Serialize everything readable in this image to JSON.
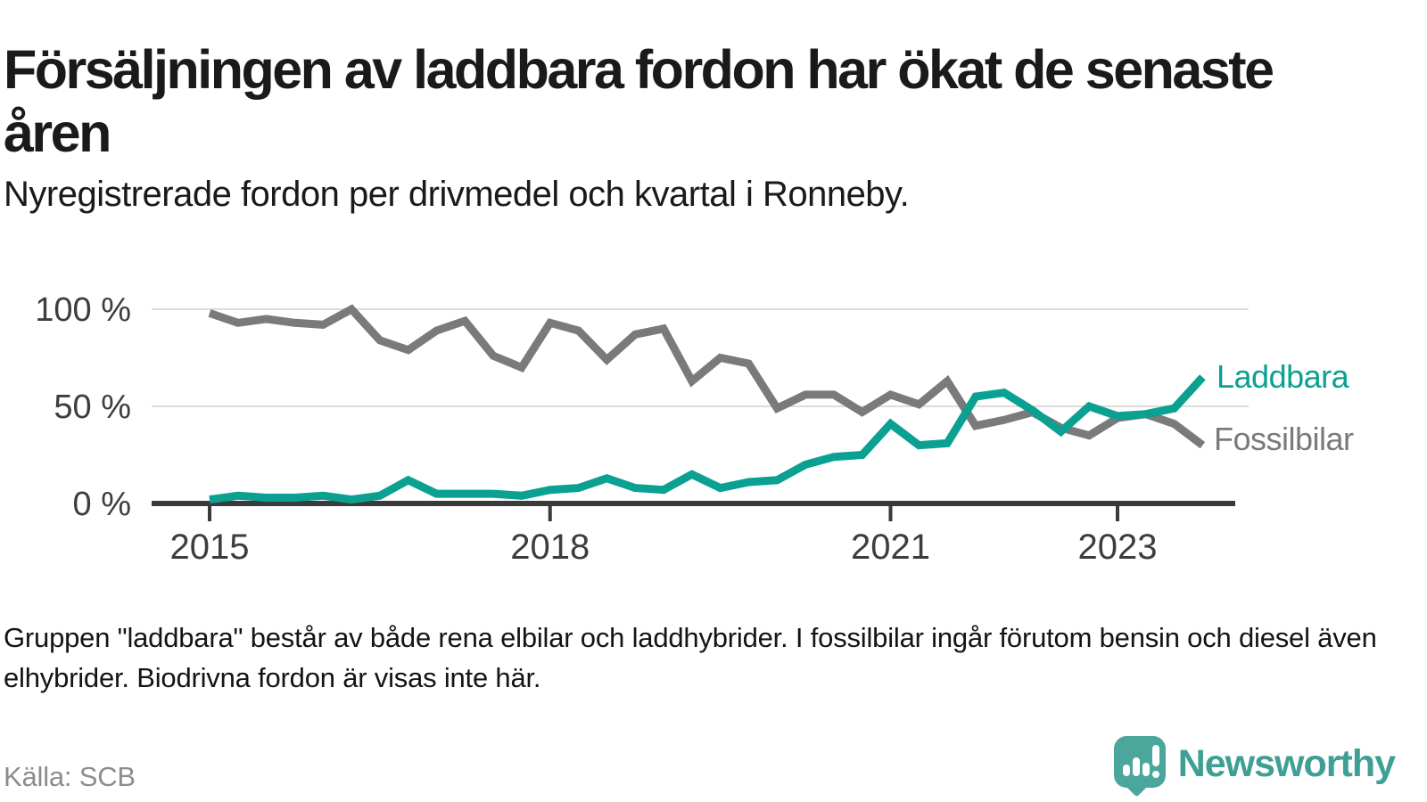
{
  "header": {
    "title": "Försäljningen av laddbara fordon har ökat de senaste åren",
    "subtitle": "Nyregistrerade fordon per drivmedel och kvartal i Ronneby."
  },
  "chart_data": {
    "type": "line",
    "title": "Nyregistrerade fordon per drivmedel och kvartal i Ronneby",
    "x_unit": "quarter",
    "categories": [
      "2015Q1",
      "2015Q2",
      "2015Q3",
      "2015Q4",
      "2016Q1",
      "2016Q2",
      "2016Q3",
      "2016Q4",
      "2017Q1",
      "2017Q2",
      "2017Q3",
      "2017Q4",
      "2018Q1",
      "2018Q2",
      "2018Q3",
      "2018Q4",
      "2019Q1",
      "2019Q2",
      "2019Q3",
      "2019Q4",
      "2020Q1",
      "2020Q2",
      "2020Q3",
      "2020Q4",
      "2021Q1",
      "2021Q2",
      "2021Q3",
      "2021Q4",
      "2022Q1",
      "2022Q2",
      "2022Q3",
      "2022Q4",
      "2023Q1",
      "2023Q2",
      "2023Q3",
      "2023Q4"
    ],
    "series": [
      {
        "name": "Laddbara",
        "color": "#0aa092",
        "values": [
          2,
          4,
          3,
          3,
          4,
          2,
          4,
          12,
          5,
          5,
          5,
          4,
          7,
          8,
          13,
          8,
          7,
          15,
          8,
          11,
          12,
          20,
          24,
          25,
          41,
          30,
          31,
          55,
          57,
          48,
          37,
          50,
          45,
          46,
          49,
          65
        ]
      },
      {
        "name": "Fossilbilar",
        "color": "#7a7a7a",
        "values": [
          98,
          93,
          95,
          93,
          92,
          100,
          84,
          79,
          89,
          94,
          76,
          70,
          93,
          89,
          74,
          87,
          90,
          63,
          75,
          72,
          49,
          56,
          56,
          47,
          56,
          51,
          63,
          40,
          43,
          47,
          39,
          35,
          44,
          46,
          41,
          30
        ]
      }
    ],
    "ylim": [
      0,
      100
    ],
    "yticks": [
      {
        "label": "100 %",
        "value": 100
      },
      {
        "label": "50 %",
        "value": 50
      },
      {
        "label": "0 %",
        "value": 0
      }
    ],
    "xticks": [
      {
        "label": "2015",
        "quarter_index": 0
      },
      {
        "label": "2018",
        "quarter_index": 12
      },
      {
        "label": "2021",
        "quarter_index": 24
      },
      {
        "label": "2023",
        "quarter_index": 32
      }
    ],
    "grid": "horizontal",
    "legend_position": "right-end-of-lines",
    "axis_color": "#3a3a3a",
    "grid_color": "#dcdcdc",
    "tick_label_color": "#3d3d3d"
  },
  "legend": {
    "laddbara": "Laddbara",
    "fossilbilar": "Fossilbilar"
  },
  "footer": {
    "note": "Gruppen \"laddbara\" består av både rena elbilar och laddhybrider. I fossilbilar ingår förutom bensin och diesel även elhybrider. Biodrivna fordon är visas inte här.",
    "source": "Källa: SCB"
  },
  "branding": {
    "name": "Newsworthy",
    "logo_color": "#4ba69c",
    "text_color": "#3f9f95"
  }
}
